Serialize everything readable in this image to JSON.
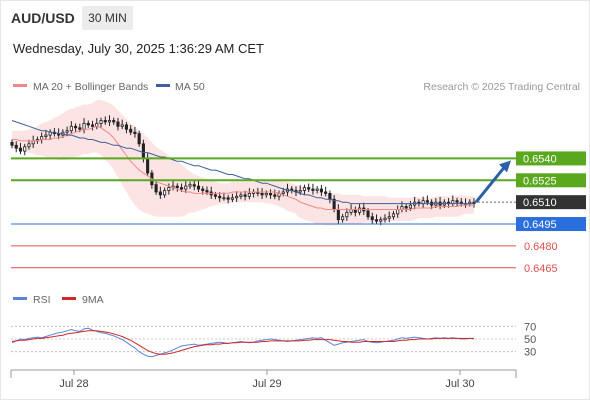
{
  "header": {
    "symbol": "AUD/USD",
    "timeframe": "30 MIN",
    "datetime": "Wednesday, July 30, 2025 1:36:29 AM CET"
  },
  "legend": {
    "ma20_label": "MA 20 + Bollinger Bands",
    "ma50_label": "MA 50",
    "credit": "Research © 2025 Trading Central"
  },
  "colors": {
    "ma20": "#f08888",
    "ma50": "#3f5f9a",
    "bollinger_fill": "#fde4e4",
    "green_level": "#5aa81e",
    "blue_level": "#2a6fdb",
    "red_level": "#e05050",
    "current_price_bg": "#333333",
    "arrow": "#2b5fa6",
    "rsi": "#5a84d8",
    "rsi_ma": "#d02828",
    "candle_up": "#ffffff",
    "candle_down": "#222222"
  },
  "chart_data": [
    {
      "type": "candlestick",
      "title": "AUD/USD 30 MIN",
      "x_ticks": [
        "Jul 28",
        "Jul 29",
        "Jul 30"
      ],
      "ylim": [
        0.6458,
        0.6578
      ],
      "current_price": 0.651,
      "levels": [
        {
          "label": "0.6540",
          "value": 0.654,
          "kind": "resistance",
          "color": "green"
        },
        {
          "label": "0.6525",
          "value": 0.6525,
          "kind": "resistance",
          "color": "green"
        },
        {
          "label": "0.6510",
          "value": 0.651,
          "kind": "current",
          "color": "dark"
        },
        {
          "label": "0.6495",
          "value": 0.6495,
          "kind": "pivot",
          "color": "blue"
        },
        {
          "label": "0.6480",
          "value": 0.648,
          "kind": "support",
          "color": "red"
        },
        {
          "label": "0.6465",
          "value": 0.6465,
          "kind": "support",
          "color": "red"
        }
      ],
      "close": [
        0.6549,
        0.6547,
        0.6545,
        0.6548,
        0.655,
        0.6552,
        0.6553,
        0.6555,
        0.6556,
        0.6558,
        0.6557,
        0.6556,
        0.6558,
        0.6559,
        0.6562,
        0.6561,
        0.656,
        0.6564,
        0.6563,
        0.6562,
        0.6564,
        0.6566,
        0.6565,
        0.6566,
        0.6565,
        0.6562,
        0.6563,
        0.656,
        0.6558,
        0.6557,
        0.655,
        0.654,
        0.653,
        0.6522,
        0.6517,
        0.6515,
        0.6518,
        0.652,
        0.6521,
        0.652,
        0.6519,
        0.6521,
        0.6522,
        0.6521,
        0.6519,
        0.6518,
        0.6517,
        0.6515,
        0.6514,
        0.6513,
        0.6513,
        0.6512,
        0.6513,
        0.6514,
        0.6515,
        0.6514,
        0.6516,
        0.6517,
        0.6516,
        0.6515,
        0.6516,
        0.6515,
        0.6514,
        0.6516,
        0.6517,
        0.6519,
        0.6518,
        0.6517,
        0.6518,
        0.652,
        0.6519,
        0.6518,
        0.6519,
        0.6517,
        0.6516,
        0.6512,
        0.6505,
        0.6498,
        0.65,
        0.6503,
        0.6505,
        0.6503,
        0.6506,
        0.6504,
        0.65,
        0.6498,
        0.6497,
        0.6498,
        0.6499,
        0.65,
        0.6502,
        0.6505,
        0.6507,
        0.6506,
        0.6508,
        0.651,
        0.6509,
        0.6511,
        0.651,
        0.6508,
        0.651,
        0.6508,
        0.651,
        0.6509,
        0.6511,
        0.651,
        0.6509,
        0.6509,
        0.651,
        0.6509
      ],
      "ma20": [
        0.6553,
        0.6553,
        0.6552,
        0.6552,
        0.6552,
        0.6552,
        0.6552,
        0.6553,
        0.6553,
        0.6553,
        0.6554,
        0.6554,
        0.6555,
        0.6556,
        0.6557,
        0.6558,
        0.6559,
        0.656,
        0.656,
        0.6561,
        0.6562,
        0.6561,
        0.6559,
        0.6557,
        0.6554,
        0.655,
        0.6546,
        0.6542,
        0.6538,
        0.6535,
        0.6532,
        0.653,
        0.6528,
        0.6526,
        0.6524,
        0.6523,
        0.6522,
        0.6521,
        0.652,
        0.6519,
        0.6518,
        0.6517,
        0.6517,
        0.6516,
        0.6516,
        0.6516,
        0.6516,
        0.6516,
        0.6516,
        0.6516,
        0.6516,
        0.6516,
        0.6517,
        0.6517,
        0.6517,
        0.6517,
        0.6517,
        0.6517,
        0.6517,
        0.6517,
        0.6517,
        0.6517,
        0.6517,
        0.6516,
        0.6515,
        0.6514,
        0.6513,
        0.6512,
        0.651,
        0.6509,
        0.6508,
        0.6507,
        0.6506,
        0.6506,
        0.6505,
        0.6505,
        0.6505,
        0.6505,
        0.6505,
        0.6505,
        0.6505,
        0.6505,
        0.6505,
        0.6505,
        0.6505,
        0.6505,
        0.6505,
        0.6505,
        0.6505,
        0.6505,
        0.6505,
        0.6505,
        0.6505,
        0.6505,
        0.6505,
        0.6506,
        0.6506,
        0.6506,
        0.6506,
        0.6506,
        0.6507,
        0.6507,
        0.6507,
        0.6507,
        0.6507,
        0.6507,
        0.6508,
        0.6508,
        0.6508,
        0.6508
      ],
      "ma50": [
        0.6566,
        0.6565,
        0.6564,
        0.6563,
        0.6562,
        0.6561,
        0.656,
        0.6559,
        0.6559,
        0.6558,
        0.6558,
        0.6557,
        0.6557,
        0.6556,
        0.6556,
        0.6555,
        0.6554,
        0.6554,
        0.6553,
        0.6553,
        0.6552,
        0.6551,
        0.6551,
        0.655,
        0.6549,
        0.6549,
        0.6548,
        0.6547,
        0.6547,
        0.6546,
        0.6545,
        0.6544,
        0.6544,
        0.6543,
        0.6542,
        0.6541,
        0.6541,
        0.654,
        0.6539,
        0.6538,
        0.6538,
        0.6537,
        0.6536,
        0.6535,
        0.6535,
        0.6534,
        0.6533,
        0.6532,
        0.6532,
        0.6531,
        0.653,
        0.6529,
        0.6529,
        0.6528,
        0.6527,
        0.6526,
        0.6526,
        0.6525,
        0.6524,
        0.6523,
        0.6523,
        0.6522,
        0.6521,
        0.652,
        0.6519,
        0.6518,
        0.6518,
        0.6517,
        0.6516,
        0.6515,
        0.6515,
        0.6514,
        0.6513,
        0.6513,
        0.6512,
        0.6512,
        0.6511,
        0.6511,
        0.651,
        0.651,
        0.6509,
        0.6509,
        0.6509,
        0.6509,
        0.6509,
        0.6509,
        0.6509,
        0.6509,
        0.6509,
        0.6509,
        0.6509,
        0.6509,
        0.6509,
        0.6509,
        0.6509,
        0.6509,
        0.6509,
        0.6509,
        0.6509,
        0.6509,
        0.6509,
        0.6509,
        0.6509,
        0.6509,
        0.6509,
        0.6509,
        0.6509,
        0.6509,
        0.6509,
        0.6509
      ],
      "band_width": [
        0.0006,
        0.0006,
        0.0007,
        0.0007,
        0.0008,
        0.0009,
        0.001,
        0.0011,
        0.0012,
        0.0013,
        0.0014,
        0.0015,
        0.0016,
        0.0017,
        0.0017,
        0.0017,
        0.0017,
        0.0017,
        0.0017,
        0.0017,
        0.0018,
        0.0019,
        0.002,
        0.0021,
        0.0022,
        0.0023,
        0.0024,
        0.0025,
        0.0026,
        0.0027,
        0.0027,
        0.0027,
        0.0026,
        0.0025,
        0.0024,
        0.0023,
        0.0022,
        0.0021,
        0.002,
        0.0019,
        0.0018,
        0.0016,
        0.0014,
        0.0013,
        0.0012,
        0.0011,
        0.001,
        0.0009,
        0.0008,
        0.0007,
        0.0007,
        0.0007,
        0.0007,
        0.0007,
        0.0007,
        0.0007,
        0.0007,
        0.0007,
        0.0007,
        0.0007,
        0.0008,
        0.0008,
        0.0009,
        0.0009,
        0.0009,
        0.001,
        0.001,
        0.001,
        0.0011,
        0.0011,
        0.0011,
        0.0011,
        0.0011,
        0.0011,
        0.0011,
        0.0011,
        0.0011,
        0.0011,
        0.001,
        0.001,
        0.001,
        0.001,
        0.001,
        0.0009,
        0.0009,
        0.0009,
        0.0009,
        0.0009,
        0.0009,
        0.0008,
        0.0008,
        0.0008,
        0.0008,
        0.0008,
        0.0008,
        0.0008,
        0.0007,
        0.0007,
        0.0007,
        0.0007,
        0.0007,
        0.0007,
        0.0007,
        0.0007,
        0.0007,
        0.0007,
        0.0007,
        0.0006,
        0.0006,
        0.0006
      ]
    },
    {
      "type": "line",
      "title": "RSI",
      "series": [
        {
          "name": "RSI",
          "values": [
            44,
            47,
            50,
            49,
            51,
            52,
            53,
            52,
            54,
            56,
            58,
            60,
            61,
            63,
            65,
            63,
            62,
            66,
            67,
            64,
            62,
            60,
            59,
            57,
            55,
            52,
            49,
            45,
            40,
            36,
            30,
            26,
            23,
            22,
            24,
            26,
            28,
            30,
            33,
            36,
            39,
            40,
            41,
            42,
            40,
            41,
            42,
            43,
            44,
            45,
            44,
            43,
            44,
            45,
            46,
            45,
            44,
            45,
            47,
            48,
            49,
            50,
            49,
            48,
            47,
            46,
            47,
            48,
            49,
            50,
            51,
            52,
            51,
            52,
            48,
            44,
            40,
            42,
            44,
            45,
            46,
            47,
            48,
            49,
            46,
            45,
            44,
            45,
            46,
            47,
            48,
            50,
            52,
            51,
            52,
            53,
            52,
            51,
            50,
            51,
            52,
            51,
            52,
            51,
            52,
            51,
            50,
            50,
            51,
            50
          ]
        },
        {
          "name": "9MA",
          "values": [
            46,
            47,
            48,
            48,
            49,
            50,
            51,
            51,
            52,
            53,
            54,
            55,
            56,
            58,
            59,
            60,
            61,
            62,
            63,
            63,
            63,
            62,
            61,
            60,
            58,
            56,
            54,
            51,
            48,
            44,
            40,
            36,
            32,
            29,
            27,
            26,
            26,
            27,
            28,
            30,
            32,
            34,
            36,
            38,
            39,
            40,
            41,
            41,
            42,
            42,
            43,
            43,
            44,
            44,
            45,
            45,
            45,
            45,
            45,
            46,
            46,
            47,
            47,
            47,
            47,
            47,
            47,
            47,
            47,
            48,
            48,
            49,
            49,
            49,
            49,
            49,
            48,
            47,
            46,
            46,
            45,
            45,
            45,
            46,
            46,
            46,
            46,
            46,
            46,
            46,
            46,
            47,
            48,
            48,
            49,
            49,
            50,
            50,
            50,
            50,
            51,
            51,
            51,
            51,
            51,
            51,
            51,
            51,
            51,
            51
          ]
        }
      ],
      "y_ticks": [
        70,
        50,
        30
      ],
      "ylim": [
        20,
        80
      ]
    }
  ]
}
